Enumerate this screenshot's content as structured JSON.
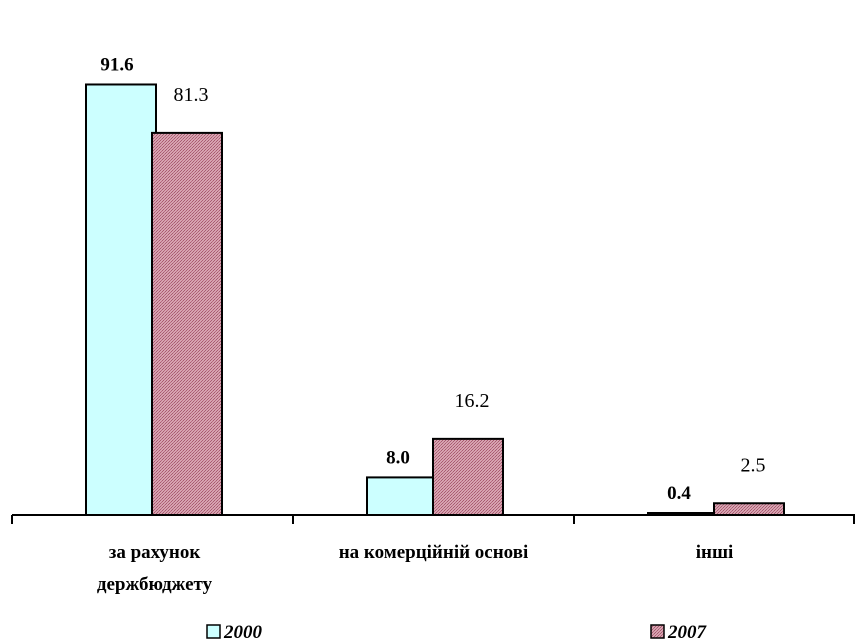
{
  "chart_data": {
    "type": "bar",
    "categories": [
      [
        "за рахунок",
        "держбюджету"
      ],
      [
        "на комерційній основі"
      ],
      [
        "інші"
      ]
    ],
    "series": [
      {
        "name": "2000",
        "values": [
          91.6,
          8.0,
          0.4
        ],
        "color": "#ccffff",
        "label_style": "bold"
      },
      {
        "name": "2007",
        "values": [
          81.3,
          16.2,
          2.5
        ],
        "color": "#cc8899",
        "label_style": "normal"
      }
    ],
    "value_labels": [
      [
        "91.6",
        "8.0",
        "0.4"
      ],
      [
        "81.3",
        "16.2",
        "2.5"
      ]
    ],
    "ylim": [
      0,
      100
    ],
    "grid": false,
    "legend_position": "bottom"
  }
}
